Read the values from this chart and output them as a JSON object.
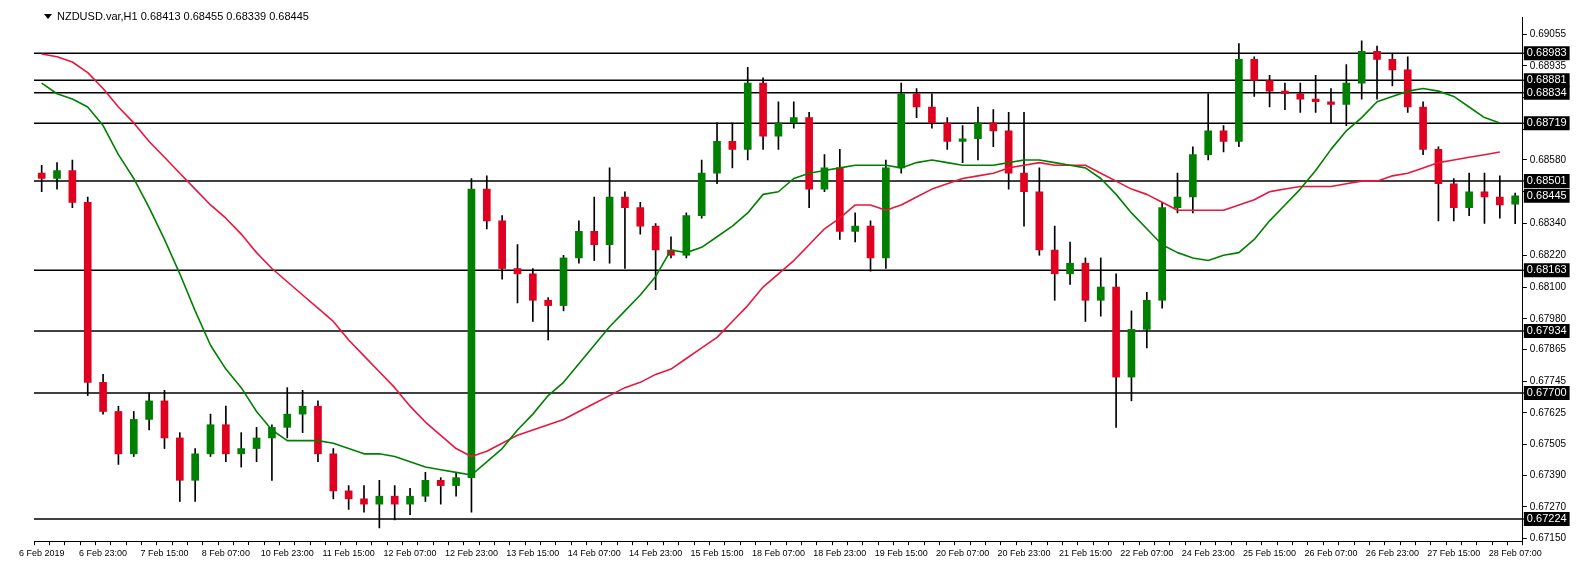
{
  "chart_data": {
    "type": "candlestick",
    "title": "NZDUSD.var,H1  0.68413 0.68455 0.68339 0.68445",
    "categories": [
      "6 Feb 2019",
      null,
      null,
      null,
      "6 Feb 23:00",
      null,
      null,
      null,
      "7 Feb 15:00",
      null,
      null,
      null,
      "8 Feb 07:00",
      null,
      null,
      null,
      "10 Feb 23:00",
      null,
      null,
      null,
      "11 Feb 15:00",
      null,
      null,
      null,
      "12 Feb 07:00",
      null,
      null,
      null,
      "12 Feb 23:00",
      null,
      null,
      null,
      "13 Feb 15:00",
      null,
      null,
      null,
      "14 Feb 07:00",
      null,
      null,
      null,
      "14 Feb 23:00",
      null,
      null,
      null,
      "15 Feb 15:00",
      null,
      null,
      null,
      "18 Feb 07:00",
      null,
      null,
      null,
      "18 Feb 23:00",
      null,
      null,
      null,
      "19 Feb 15:00",
      null,
      null,
      null,
      "20 Feb 07:00",
      null,
      null,
      null,
      "20 Feb 23:00",
      null,
      null,
      null,
      "21 Feb 15:00",
      null,
      null,
      null,
      "22 Feb 07:00",
      null,
      null,
      null,
      "24 Feb 23:00",
      null,
      null,
      null,
      "25 Feb 15:00",
      null,
      null,
      null,
      "26 Feb 07:00",
      null,
      null,
      null,
      "26 Feb 23:00",
      null,
      null,
      null,
      "27 Feb 15:00",
      null,
      null,
      null,
      "28 Feb 07:00"
    ],
    "ohlc": [
      [
        0.6853,
        0.6856,
        0.6846,
        0.6851
      ],
      [
        0.6851,
        0.6857,
        0.6847,
        0.6854
      ],
      [
        0.6854,
        0.6858,
        0.684,
        0.6842
      ],
      [
        0.6842,
        0.6844,
        0.6769,
        0.6774
      ],
      [
        0.6774,
        0.6777,
        0.6762,
        0.6763
      ],
      [
        0.6763,
        0.6765,
        0.6743,
        0.6747
      ],
      [
        0.6747,
        0.6763,
        0.6746,
        0.676
      ],
      [
        0.676,
        0.677,
        0.6756,
        0.6767
      ],
      [
        0.6767,
        0.6771,
        0.6749,
        0.6753
      ],
      [
        0.6753,
        0.6755,
        0.6729,
        0.6737
      ],
      [
        0.6737,
        0.6749,
        0.6729,
        0.6747
      ],
      [
        0.6747,
        0.6762,
        0.6746,
        0.6758
      ],
      [
        0.6758,
        0.6765,
        0.6744,
        0.6747
      ],
      [
        0.6747,
        0.6755,
        0.6742,
        0.6749
      ],
      [
        0.6749,
        0.6757,
        0.6744,
        0.6753
      ],
      [
        0.6753,
        0.6758,
        0.6737,
        0.6757
      ],
      [
        0.6757,
        0.6772,
        0.6753,
        0.6762
      ],
      [
        0.6762,
        0.6771,
        0.6755,
        0.6765
      ],
      [
        0.6765,
        0.6767,
        0.6744,
        0.6747
      ],
      [
        0.6747,
        0.6749,
        0.673,
        0.6733
      ],
      [
        0.6733,
        0.6735,
        0.6726,
        0.673
      ],
      [
        0.673,
        0.6735,
        0.6725,
        0.6728
      ],
      [
        0.6728,
        0.6737,
        0.6719,
        0.6731
      ],
      [
        0.6731,
        0.6735,
        0.6722,
        0.6728
      ],
      [
        0.6728,
        0.6734,
        0.6724,
        0.6731
      ],
      [
        0.6731,
        0.674,
        0.6729,
        0.6737
      ],
      [
        0.6737,
        0.6738,
        0.6728,
        0.6735
      ],
      [
        0.6735,
        0.674,
        0.6731,
        0.6738
      ],
      [
        0.6738,
        0.6851,
        0.6725,
        0.6847
      ],
      [
        0.6847,
        0.6852,
        0.6832,
        0.6835
      ],
      [
        0.6835,
        0.6837,
        0.6813,
        0.6817
      ],
      [
        0.6817,
        0.6826,
        0.6804,
        0.6815
      ],
      [
        0.6815,
        0.6817,
        0.6797,
        0.6805
      ],
      [
        0.6805,
        0.6806,
        0.679,
        0.6803
      ],
      [
        0.6803,
        0.6822,
        0.6801,
        0.6821
      ],
      [
        0.6821,
        0.6835,
        0.6819,
        0.6831
      ],
      [
        0.6831,
        0.6844,
        0.682,
        0.6826
      ],
      [
        0.6826,
        0.6855,
        0.6819,
        0.6844
      ],
      [
        0.6844,
        0.6846,
        0.6817,
        0.684
      ],
      [
        0.684,
        0.6842,
        0.683,
        0.6833
      ],
      [
        0.6833,
        0.6834,
        0.6809,
        0.6824
      ],
      [
        0.6824,
        0.6829,
        0.6821,
        0.6822
      ],
      [
        0.6822,
        0.6838,
        0.6821,
        0.6837
      ],
      [
        0.6837,
        0.6858,
        0.6836,
        0.6853
      ],
      [
        0.6853,
        0.6872,
        0.6849,
        0.6865
      ],
      [
        0.6865,
        0.6872,
        0.6855,
        0.6862
      ],
      [
        0.6862,
        0.6893,
        0.6858,
        0.6887
      ],
      [
        0.6887,
        0.6889,
        0.6862,
        0.6867
      ],
      [
        0.6867,
        0.688,
        0.6862,
        0.6872
      ],
      [
        0.6872,
        0.688,
        0.687,
        0.6874
      ],
      [
        0.6874,
        0.6876,
        0.684,
        0.6847
      ],
      [
        0.6847,
        0.686,
        0.6846,
        0.6855
      ],
      [
        0.6855,
        0.6862,
        0.6828,
        0.6831
      ],
      [
        0.6831,
        0.6838,
        0.6827,
        0.6833
      ],
      [
        0.6833,
        0.6835,
        0.6816,
        0.6821
      ],
      [
        0.6821,
        0.6858,
        0.6817,
        0.6855
      ],
      [
        0.6855,
        0.6887,
        0.6853,
        0.6883
      ],
      [
        0.6883,
        0.6885,
        0.6874,
        0.6878
      ],
      [
        0.6878,
        0.6883,
        0.687,
        0.6872
      ],
      [
        0.6872,
        0.6874,
        0.6862,
        0.6865
      ],
      [
        0.6865,
        0.6871,
        0.6857,
        0.6866
      ],
      [
        0.6866,
        0.6878,
        0.6858,
        0.6872
      ],
      [
        0.6872,
        0.6877,
        0.6863,
        0.6869
      ],
      [
        0.6869,
        0.6876,
        0.6847,
        0.6853
      ],
      [
        0.6853,
        0.6876,
        0.6833,
        0.6846
      ],
      [
        0.6846,
        0.6855,
        0.6822,
        0.6824
      ],
      [
        0.6824,
        0.6833,
        0.6805,
        0.6815
      ],
      [
        0.6815,
        0.6827,
        0.6811,
        0.6819
      ],
      [
        0.6819,
        0.6821,
        0.6797,
        0.6805
      ],
      [
        0.6805,
        0.6821,
        0.6799,
        0.681
      ],
      [
        0.681,
        0.6815,
        0.6757,
        0.6776
      ],
      [
        0.6776,
        0.6801,
        0.6767,
        0.6794
      ],
      [
        0.6794,
        0.6808,
        0.6787,
        0.6805
      ],
      [
        0.6805,
        0.6842,
        0.6802,
        0.684
      ],
      [
        0.684,
        0.6853,
        0.6838,
        0.6844
      ],
      [
        0.6844,
        0.6863,
        0.6838,
        0.686
      ],
      [
        0.686,
        0.6883,
        0.6858,
        0.6869
      ],
      [
        0.6869,
        0.6871,
        0.6861,
        0.6865
      ],
      [
        0.6865,
        0.6902,
        0.6863,
        0.6896
      ],
      [
        0.6896,
        0.6897,
        0.6882,
        0.6888
      ],
      [
        0.6888,
        0.689,
        0.6878,
        0.6884
      ],
      [
        0.6884,
        0.6887,
        0.6877,
        0.6883
      ],
      [
        0.6883,
        0.6887,
        0.6876,
        0.6881
      ],
      [
        0.6881,
        0.689,
        0.6876,
        0.688
      ],
      [
        0.688,
        0.6885,
        0.6872,
        0.6879
      ],
      [
        0.6879,
        0.6894,
        0.6871,
        0.6887
      ],
      [
        0.6887,
        0.6903,
        0.6881,
        0.6899
      ],
      [
        0.6899,
        0.6901,
        0.6881,
        0.6896
      ],
      [
        0.6896,
        0.6898,
        0.6886,
        0.6892
      ],
      [
        0.6892,
        0.6897,
        0.6876,
        0.6878
      ],
      [
        0.6878,
        0.688,
        0.686,
        0.6862
      ],
      [
        0.6862,
        0.6863,
        0.6835,
        0.6849
      ],
      [
        0.6849,
        0.6851,
        0.6835,
        0.684
      ],
      [
        0.684,
        0.6853,
        0.6837,
        0.6846
      ],
      [
        0.6846,
        0.6853,
        0.6834,
        0.6844
      ],
      [
        0.6844,
        0.6852,
        0.6836,
        0.6841
      ],
      [
        0.68413,
        0.68455,
        0.68339,
        0.68445
      ]
    ],
    "series": [
      {
        "type": "line",
        "color": "#008000",
        "values": [
          0.6887,
          0.6883,
          0.6881,
          0.6878,
          0.6871,
          0.686,
          0.6851,
          0.684,
          0.6828,
          0.6815,
          0.6801,
          0.6788,
          0.6779,
          0.6772,
          0.6763,
          0.6756,
          0.6752,
          0.6752,
          0.6752,
          0.6751,
          0.6749,
          0.6747,
          0.6747,
          0.6746,
          0.6744,
          0.6742,
          0.6741,
          0.674,
          0.6739,
          0.6744,
          0.6749,
          0.6756,
          0.6762,
          0.6769,
          0.6774,
          0.6781,
          0.6788,
          0.6795,
          0.6801,
          0.6807,
          0.6814,
          0.6824,
          0.6823,
          0.6825,
          0.6829,
          0.6833,
          0.6838,
          0.6845,
          0.6846,
          0.6851,
          0.6853,
          0.6854,
          0.6855,
          0.6856,
          0.6856,
          0.6856,
          0.6855,
          0.6857,
          0.6858,
          0.6857,
          0.6856,
          0.6856,
          0.6856,
          0.6857,
          0.6858,
          0.6858,
          0.6857,
          0.6856,
          0.6855,
          0.6851,
          0.6845,
          0.6838,
          0.6832,
          0.6826,
          0.6823,
          0.6821,
          0.682,
          0.6822,
          0.6823,
          0.6828,
          0.6835,
          0.6841,
          0.6847,
          0.6854,
          0.6862,
          0.6869,
          0.6874,
          0.688,
          0.6882,
          0.6884,
          0.6885,
          0.6884,
          0.6882,
          0.6878,
          0.6874,
          0.6872,
          null
        ]
      },
      {
        "type": "line",
        "color": "#e8173c",
        "values": [
          0.6898,
          0.6897,
          0.6895,
          0.6891,
          0.6885,
          0.6878,
          0.6872,
          0.6865,
          0.6859,
          0.6853,
          0.6847,
          0.6841,
          0.6836,
          0.683,
          0.6823,
          0.6817,
          0.6812,
          0.6807,
          0.6802,
          0.6797,
          0.679,
          0.6784,
          0.6778,
          0.6772,
          0.6765,
          0.6759,
          0.6754,
          0.6749,
          0.6746,
          0.6748,
          0.6751,
          0.6754,
          0.6756,
          0.6758,
          0.676,
          0.6763,
          0.6766,
          0.6769,
          0.6772,
          0.6774,
          0.6777,
          0.6779,
          0.6783,
          0.6787,
          0.6791,
          0.6797,
          0.6803,
          0.681,
          0.6815,
          0.682,
          0.6826,
          0.6832,
          0.6836,
          0.6841,
          0.6841,
          0.6839,
          0.6841,
          0.6844,
          0.6847,
          0.6849,
          0.6851,
          0.6852,
          0.6853,
          0.6855,
          0.6856,
          0.6857,
          0.6856,
          0.6856,
          0.6856,
          0.6853,
          0.685,
          0.6847,
          0.6845,
          0.6842,
          0.6839,
          0.6839,
          0.6839,
          0.6839,
          0.6841,
          0.6843,
          0.6846,
          0.6847,
          0.6848,
          0.6848,
          0.6848,
          0.6849,
          0.685,
          0.685,
          0.6852,
          0.6853,
          0.6855,
          0.6857,
          0.6858,
          0.6859,
          0.686,
          0.6861,
          null
        ]
      }
    ],
    "ylim": [
      0.6714,
      0.6912
    ],
    "yticks": [
      {
        "value": 0.69055,
        "label": "0.69055"
      },
      {
        "value": 0.68935,
        "label": "0.68935"
      },
      {
        "value": 0.68815,
        "label": null
      },
      {
        "value": 0.68695,
        "label": null
      },
      {
        "value": 0.6858,
        "label": "0.68580"
      },
      {
        "value": 0.6846,
        "label": null
      },
      {
        "value": 0.6834,
        "label": "0.68340"
      },
      {
        "value": 0.6822,
        "label": "0.68220"
      },
      {
        "value": 0.681,
        "label": "0.68100"
      },
      {
        "value": 0.6798,
        "label": "0.67980"
      },
      {
        "value": 0.67865,
        "label": "0.67865"
      },
      {
        "value": 0.67745,
        "label": "0.67745"
      },
      {
        "value": 0.67625,
        "label": "0.67625"
      },
      {
        "value": 0.67505,
        "label": "0.67505"
      },
      {
        "value": 0.6739,
        "label": "0.67390"
      },
      {
        "value": 0.6727,
        "label": "0.67270"
      },
      {
        "value": 0.6715,
        "label": "0.67150"
      }
    ],
    "ref_lines": [
      {
        "axis": "y",
        "value": 0.68983,
        "label": "0.68983",
        "color": "#000000"
      },
      {
        "axis": "y",
        "value": 0.68881,
        "label": "0.68881",
        "color": "#000000"
      },
      {
        "axis": "y",
        "value": 0.68834,
        "label": "0.68834",
        "color": "#000000"
      },
      {
        "axis": "y",
        "value": 0.68719,
        "label": "0.68719",
        "color": "#000000"
      },
      {
        "axis": "y",
        "value": 0.68501,
        "label": "0.68501",
        "color": "#000000"
      },
      {
        "axis": "y",
        "value": 0.68163,
        "label": "0.68163",
        "color": "#000000"
      },
      {
        "axis": "y",
        "value": 0.67934,
        "label": "0.67934",
        "color": "#000000"
      },
      {
        "axis": "y",
        "value": 0.677,
        "label": "0.67700",
        "color": "#000000"
      },
      {
        "axis": "y",
        "value": 0.67224,
        "label": "0.67224",
        "color": "#000000"
      }
    ],
    "annotations": [
      {
        "text": "0.68445",
        "x": "28 Feb 07:00",
        "y": 0.68445
      }
    ],
    "grid": false,
    "legend": false
  }
}
